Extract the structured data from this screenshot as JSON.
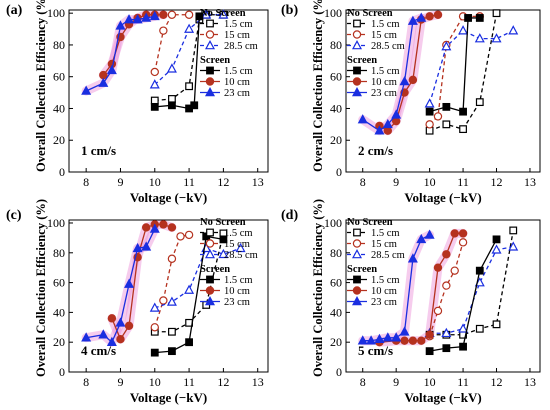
{
  "figure": {
    "colors": {
      "black": "#000000",
      "red": "#b5321f",
      "blue": "#1a2ee0",
      "glow": "#ec8fd6"
    },
    "legend_headings": [
      "No Screen",
      "Screen"
    ]
  },
  "chart_data": [
    {
      "panel_label": "(a)",
      "speed_label": "1 cm/s",
      "type": "line",
      "xlabel": "Voltage (−kV)",
      "ylabel": "Overall Collection Efficiency (%)",
      "xlim": [
        7.5,
        13.3
      ],
      "ylim": [
        0,
        102
      ],
      "xticks": [
        "8",
        "9",
        "10",
        "11",
        "12",
        "13"
      ],
      "yticks": [
        "0",
        "20",
        "40",
        "60",
        "80",
        "100"
      ],
      "series": [
        {
          "name": "1.5 cm",
          "group": "No Screen",
          "color": "#000000",
          "marker": "square",
          "filled": false,
          "dashed": true,
          "x": [
            10,
            10.5,
            11,
            11.3,
            11.5,
            12
          ],
          "y": [
            45,
            46,
            54,
            96,
            99,
            99
          ]
        },
        {
          "name": "15 cm",
          "group": "No Screen",
          "color": "#b5321f",
          "marker": "circle",
          "filled": false,
          "dashed": true,
          "x": [
            10,
            10.25,
            10.5,
            11
          ],
          "y": [
            63,
            89,
            99,
            99
          ]
        },
        {
          "name": "28.5 cm",
          "group": "No Screen",
          "color": "#1a2ee0",
          "marker": "triangle",
          "filled": false,
          "dashed": true,
          "x": [
            10,
            10.5,
            11,
            11.5,
            12
          ],
          "y": [
            55,
            65,
            90,
            99,
            99
          ]
        },
        {
          "name": "1.5 cm",
          "group": "Screen",
          "color": "#000000",
          "marker": "square",
          "filled": true,
          "dashed": false,
          "x": [
            10,
            10.5,
            11,
            11.15,
            11.3
          ],
          "y": [
            41,
            42,
            40,
            42,
            98
          ]
        },
        {
          "name": "10 cm",
          "group": "Screen",
          "color": "#b5321f",
          "marker": "circle",
          "filled": true,
          "dashed": false,
          "glow": true,
          "x": [
            8.5,
            8.75,
            9,
            9.25,
            9.5,
            9.75,
            10,
            10.25
          ],
          "y": [
            61,
            68,
            85,
            93,
            97,
            99,
            99,
            99
          ]
        },
        {
          "name": "23 cm",
          "group": "Screen",
          "color": "#1a2ee0",
          "marker": "triangle",
          "filled": true,
          "dashed": false,
          "glow": true,
          "x": [
            8,
            8.5,
            8.75,
            9,
            9.25,
            9.5,
            9.75,
            10
          ],
          "y": [
            51,
            56,
            64,
            92,
            96,
            96,
            97,
            98
          ]
        }
      ]
    },
    {
      "panel_label": "(b)",
      "speed_label": "2 cm/s",
      "type": "line",
      "xlabel": "Voltage (−kV)",
      "ylabel": "Overall Collection Efficiency (%)",
      "xlim": [
        7.5,
        13.3
      ],
      "ylim": [
        0,
        102
      ],
      "xticks": [
        "8",
        "9",
        "10",
        "11",
        "12",
        "13"
      ],
      "yticks": [
        "0",
        "20",
        "40",
        "60",
        "80",
        "100"
      ],
      "series": [
        {
          "name": "1.5 cm",
          "group": "No Screen",
          "color": "#000000",
          "marker": "square",
          "filled": false,
          "dashed": true,
          "x": [
            10,
            10.5,
            11,
            11.5,
            12
          ],
          "y": [
            26,
            30,
            27,
            44,
            100
          ]
        },
        {
          "name": "15 cm",
          "group": "No Screen",
          "color": "#b5321f",
          "marker": "circle",
          "filled": false,
          "dashed": true,
          "x": [
            10,
            10.25,
            10.5,
            11,
            11.5
          ],
          "y": [
            30,
            35,
            80,
            98,
            98
          ]
        },
        {
          "name": "28.5 cm",
          "group": "No Screen",
          "color": "#1a2ee0",
          "marker": "triangle",
          "filled": false,
          "dashed": true,
          "x": [
            10,
            10.5,
            11,
            11.5,
            12,
            12.5
          ],
          "y": [
            43,
            79,
            89,
            84,
            84,
            89
          ]
        },
        {
          "name": "1.5 cm",
          "group": "Screen",
          "color": "#000000",
          "marker": "square",
          "filled": true,
          "dashed": false,
          "x": [
            10,
            10.5,
            11,
            11.15,
            11.5
          ],
          "y": [
            38,
            41,
            38,
            97,
            97
          ]
        },
        {
          "name": "10 cm",
          "group": "Screen",
          "color": "#b5321f",
          "marker": "circle",
          "filled": true,
          "dashed": false,
          "glow": true,
          "x": [
            8.5,
            8.75,
            9,
            9.25,
            9.5,
            9.75,
            10,
            10.25
          ],
          "y": [
            29,
            26,
            32,
            50,
            58,
            96,
            98,
            99
          ]
        },
        {
          "name": "23 cm",
          "group": "Screen",
          "color": "#1a2ee0",
          "marker": "triangle",
          "filled": true,
          "dashed": false,
          "glow": true,
          "x": [
            8,
            8.5,
            8.75,
            9,
            9.25,
            9.5,
            9.75
          ],
          "y": [
            33,
            26,
            30,
            36,
            57,
            95,
            97
          ]
        }
      ]
    },
    {
      "panel_label": "(c)",
      "speed_label": "4 cm/s",
      "type": "line",
      "xlabel": "Voltage (−kV)",
      "ylabel": "Overall Collection Efficiency (%)",
      "xlim": [
        7.5,
        13.3
      ],
      "ylim": [
        0,
        102
      ],
      "xticks": [
        "8",
        "9",
        "10",
        "11",
        "12",
        "13"
      ],
      "yticks": [
        "0",
        "20",
        "40",
        "60",
        "80",
        "100"
      ],
      "series": [
        {
          "name": "1.5 cm",
          "group": "No Screen",
          "color": "#000000",
          "marker": "square",
          "filled": false,
          "dashed": true,
          "x": [
            10,
            10.5,
            11,
            11.5,
            12
          ],
          "y": [
            27,
            27,
            33,
            45,
            93
          ]
        },
        {
          "name": "15 cm",
          "group": "No Screen",
          "color": "#b5321f",
          "marker": "circle",
          "filled": false,
          "dashed": true,
          "x": [
            10,
            10.25,
            10.5,
            10.75,
            11
          ],
          "y": [
            30,
            48,
            76,
            91,
            92
          ]
        },
        {
          "name": "28.5 cm",
          "group": "No Screen",
          "color": "#1a2ee0",
          "marker": "triangle",
          "filled": false,
          "dashed": true,
          "x": [
            10,
            10.5,
            11,
            11.5,
            12,
            12.5
          ],
          "y": [
            43,
            47,
            55,
            83,
            79,
            83
          ]
        },
        {
          "name": "1.5 cm",
          "group": "Screen",
          "color": "#000000",
          "marker": "square",
          "filled": true,
          "dashed": false,
          "x": [
            10,
            10.5,
            11,
            11.5,
            12
          ],
          "y": [
            13,
            14,
            20,
            91,
            89
          ]
        },
        {
          "name": "10 cm",
          "group": "Screen",
          "color": "#b5321f",
          "marker": "circle",
          "filled": true,
          "dashed": false,
          "glow": true,
          "x": [
            8.75,
            9,
            9.25,
            9.5,
            9.75,
            10,
            10.25,
            10.5
          ],
          "y": [
            36,
            22,
            31,
            77,
            97,
            99,
            99,
            97
          ]
        },
        {
          "name": "23 cm",
          "group": "Screen",
          "color": "#1a2ee0",
          "marker": "triangle",
          "filled": true,
          "dashed": false,
          "glow": true,
          "x": [
            8,
            8.5,
            8.75,
            9,
            9.25,
            9.5,
            9.75,
            10
          ],
          "y": [
            23,
            25,
            20,
            33,
            59,
            83,
            84,
            96
          ]
        }
      ]
    },
    {
      "panel_label": "(d)",
      "speed_label": "5 cm/s",
      "type": "line",
      "xlabel": "Voltage (−kV)",
      "ylabel": "Overall Collection Efficiency (%)",
      "xlim": [
        7.5,
        13.3
      ],
      "ylim": [
        0,
        102
      ],
      "xticks": [
        "8",
        "9",
        "10",
        "11",
        "12",
        "13"
      ],
      "yticks": [
        "0",
        "20",
        "40",
        "60",
        "80",
        "100"
      ],
      "series": [
        {
          "name": "1.5 cm",
          "group": "No Screen",
          "color": "#000000",
          "marker": "square",
          "filled": false,
          "dashed": true,
          "x": [
            10,
            10.5,
            11,
            11.5,
            12,
            12.5
          ],
          "y": [
            25,
            25,
            25,
            29,
            32,
            95
          ]
        },
        {
          "name": "15 cm",
          "group": "No Screen",
          "color": "#b5321f",
          "marker": "circle",
          "filled": false,
          "dashed": true,
          "x": [
            10,
            10.25,
            10.5,
            10.75,
            11
          ],
          "y": [
            24,
            41,
            58,
            68,
            87
          ]
        },
        {
          "name": "28.5 cm",
          "group": "No Screen",
          "color": "#1a2ee0",
          "marker": "triangle",
          "filled": false,
          "dashed": true,
          "x": [
            10,
            10.5,
            11,
            11.5,
            12,
            12.5
          ],
          "y": [
            26,
            26,
            29,
            60,
            82,
            84
          ]
        },
        {
          "name": "1.5 cm",
          "group": "Screen",
          "color": "#000000",
          "marker": "square",
          "filled": true,
          "dashed": false,
          "x": [
            10,
            10.5,
            11,
            11.5,
            12
          ],
          "y": [
            14,
            16,
            17,
            68,
            89
          ]
        },
        {
          "name": "10 cm",
          "group": "Screen",
          "color": "#b5321f",
          "marker": "circle",
          "filled": true,
          "dashed": false,
          "glow": true,
          "x": [
            8.5,
            9,
            9.25,
            9.5,
            9.75,
            10,
            10.25,
            10.5,
            10.75,
            11
          ],
          "y": [
            20,
            21,
            21,
            21,
            21,
            25,
            70,
            79,
            93,
            93
          ]
        },
        {
          "name": "23 cm",
          "group": "Screen",
          "color": "#1a2ee0",
          "marker": "triangle",
          "filled": true,
          "dashed": false,
          "glow": true,
          "x": [
            8,
            8.25,
            8.5,
            8.75,
            9,
            9.25,
            9.5,
            9.75,
            10
          ],
          "y": [
            21,
            21,
            22,
            23,
            23,
            27,
            76,
            89,
            92
          ]
        }
      ]
    }
  ]
}
